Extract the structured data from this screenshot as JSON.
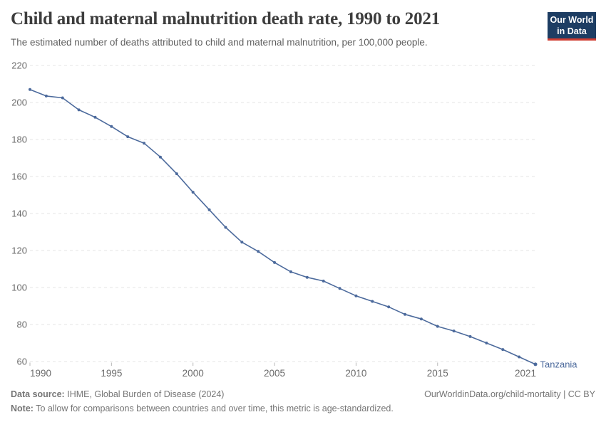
{
  "header": {
    "title": "Child and maternal malnutrition death rate, 1990 to 2021",
    "subtitle": "The estimated number of deaths attributed to child and maternal malnutrition, per 100,000 people.",
    "logo_line1": "Our World",
    "logo_line2": "in Data"
  },
  "chart_data": {
    "type": "line",
    "title": "Child and maternal malnutrition death rate, 1990 to 2021",
    "subtitle": "The estimated number of deaths attributed to child and maternal malnutrition, per 100,000 people.",
    "xlabel": "",
    "ylabel": "",
    "xlim": [
      1990,
      2021
    ],
    "ylim": [
      60,
      220
    ],
    "xticks": [
      1990,
      1995,
      2000,
      2005,
      2010,
      2015,
      2021
    ],
    "yticks": [
      60,
      80,
      100,
      120,
      140,
      160,
      180,
      200,
      220
    ],
    "grid": true,
    "grid_style": "dashed",
    "legend_position": "end-of-line-label",
    "series": [
      {
        "name": "Tanzania",
        "color": "#4c6a9c",
        "x": [
          1990,
          1991,
          1992,
          1993,
          1994,
          1995,
          1996,
          1997,
          1998,
          1999,
          2000,
          2001,
          2002,
          2003,
          2004,
          2005,
          2006,
          2007,
          2008,
          2009,
          2010,
          2011,
          2012,
          2013,
          2014,
          2015,
          2016,
          2017,
          2018,
          2019,
          2020,
          2021
        ],
        "values": [
          207,
          203.5,
          202.5,
          196,
          192,
          187,
          181.5,
          178,
          170.5,
          161.5,
          151.5,
          142,
          132.5,
          124.5,
          119.5,
          113.5,
          108.5,
          105.5,
          103.5,
          99.5,
          95.5,
          92.5,
          89.5,
          85.5,
          83,
          79,
          76.5,
          73.5,
          70,
          66.5,
          62.5,
          58.5
        ]
      }
    ],
    "end_label": "Tanzania"
  },
  "footer": {
    "datasource_label": "Data source:",
    "datasource_value": "IHME, Global Burden of Disease (2024)",
    "link": "OurWorldinData.org/child-mortality | CC BY",
    "note_label": "Note:",
    "note_value": "To allow for comparisons between countries and over time, this metric is age-standardized."
  },
  "colors": {
    "line": "#4c6a9c",
    "grid": "#e4e4e4",
    "tick_mark": "#b8b8b8",
    "axis_text": "#6b6b6b",
    "title": "#3d3d3d",
    "subtitle": "#5f5f5f",
    "footer_text": "#757575",
    "logo_background": "#1d3d63",
    "logo_accent": "#cf3d32"
  }
}
